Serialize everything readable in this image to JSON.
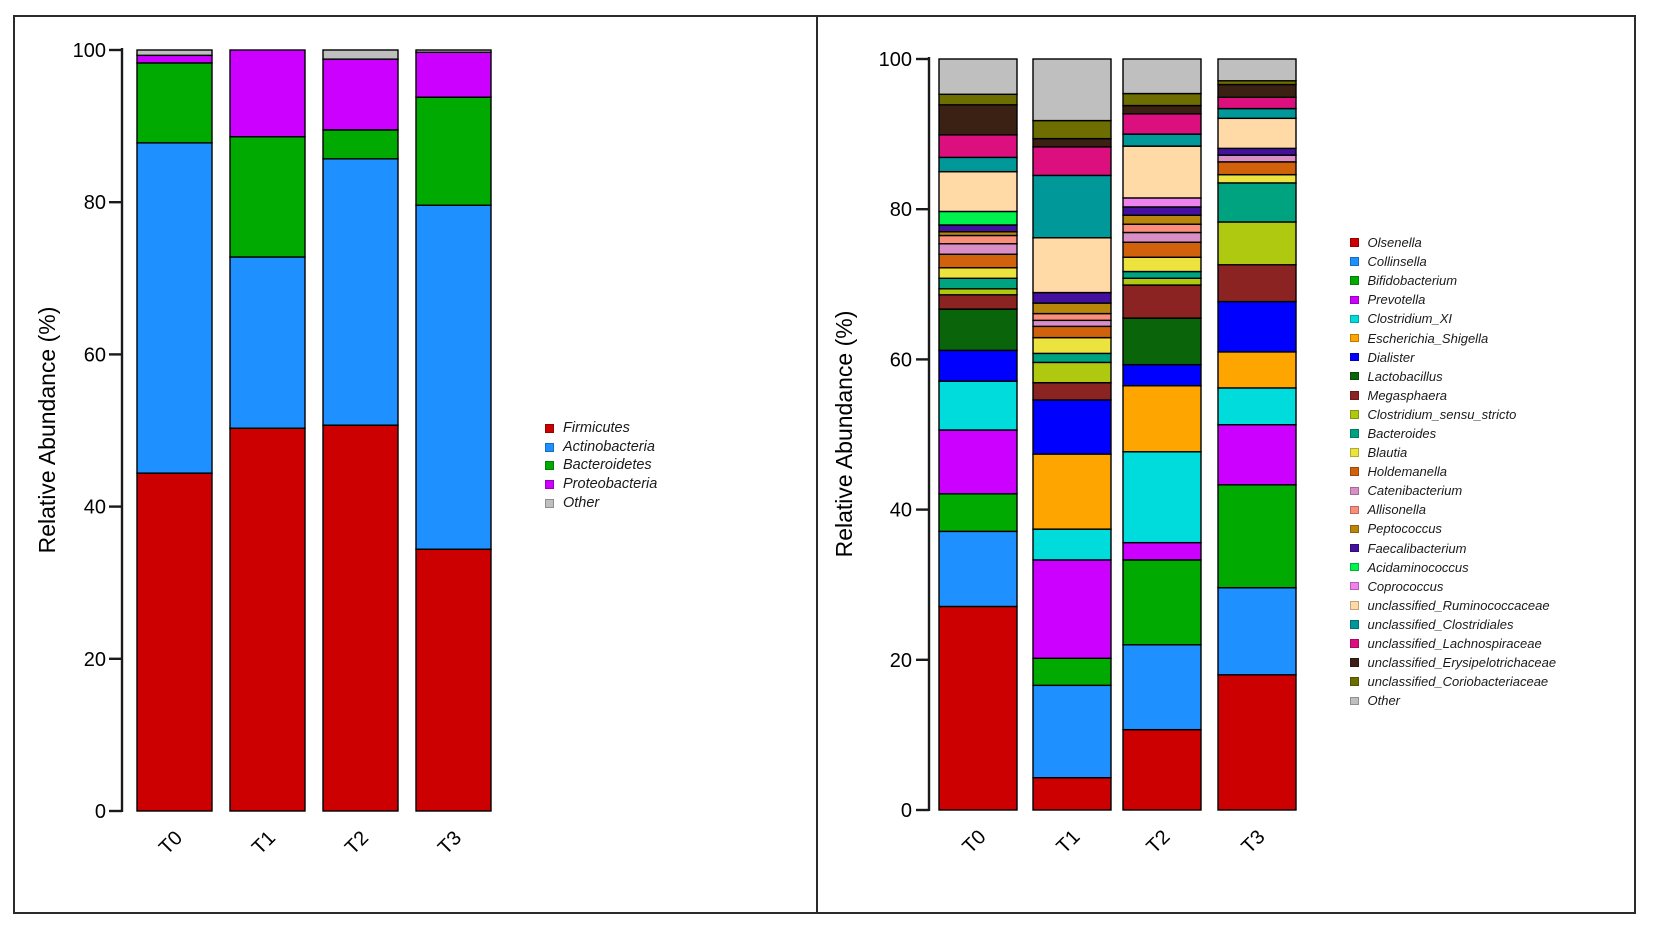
{
  "figure": {
    "background": "#ffffff",
    "frame_color": "#2b2b2b",
    "axis_color": "#1a1a1a",
    "bar_outline_color": "#000000"
  },
  "chart_data": [
    {
      "type": "bar",
      "stacked": true,
      "panel": "phylum-level",
      "title": "",
      "xlabel": "",
      "ylabel": "Relative Abundance (%)",
      "ylim": [
        0,
        100
      ],
      "yticks": [
        0,
        20,
        40,
        60,
        80,
        100
      ],
      "grid": false,
      "legend_position": "right",
      "categories": [
        "T0",
        "T1",
        "T2",
        "T3"
      ],
      "series": [
        {
          "name": "Firmicutes",
          "color": "#CC0000",
          "values": [
            44.4,
            50.3,
            50.7,
            34.4
          ]
        },
        {
          "name": "Actinobacteria",
          "color": "#1E90FF",
          "values": [
            43.4,
            22.5,
            35.0,
            45.2
          ]
        },
        {
          "name": "Bacteroidetes",
          "color": "#00AA00",
          "values": [
            10.5,
            15.8,
            3.8,
            14.2
          ]
        },
        {
          "name": "Proteobacteria",
          "color": "#CC00FF",
          "values": [
            1.0,
            11.4,
            9.3,
            5.9
          ]
        },
        {
          "name": "Other",
          "color": "#BFBFBF",
          "values": [
            0.7,
            0.0,
            1.2,
            0.3
          ]
        }
      ]
    },
    {
      "type": "bar",
      "stacked": true,
      "panel": "genus-level",
      "title": "",
      "xlabel": "",
      "ylabel": "Relative Abundance (%)",
      "ylim": [
        0,
        100
      ],
      "yticks": [
        0,
        20,
        40,
        60,
        80,
        100
      ],
      "grid": false,
      "legend_position": "right",
      "categories": [
        "T0",
        "T1",
        "T2",
        "T3"
      ],
      "series": [
        {
          "name": "Olsenella",
          "color": "#CC0000",
          "values": [
            27.1,
            4.3,
            10.7,
            18.0
          ]
        },
        {
          "name": "Collinsella",
          "color": "#1E90FF",
          "values": [
            10.0,
            12.3,
            11.3,
            11.6
          ]
        },
        {
          "name": "Bifidobacterium",
          "color": "#00AA00",
          "values": [
            5.0,
            3.6,
            11.3,
            13.7
          ]
        },
        {
          "name": "Prevotella",
          "color": "#CC00FF",
          "values": [
            8.5,
            13.1,
            2.3,
            8.0
          ]
        },
        {
          "name": "Clostridium_XI",
          "color": "#00DCDC",
          "values": [
            6.5,
            4.1,
            12.1,
            4.9
          ]
        },
        {
          "name": "Escherichia_Shigella",
          "color": "#FFA500",
          "values": [
            0.0,
            10.0,
            8.8,
            4.8
          ]
        },
        {
          "name": "Dialister",
          "color": "#0000FF",
          "values": [
            4.1,
            7.2,
            2.8,
            6.7
          ]
        },
        {
          "name": "Lactobacillus",
          "color": "#0A640A",
          "values": [
            5.5,
            0.0,
            6.2,
            0.0
          ]
        },
        {
          "name": "Megasphaera",
          "color": "#8B2323",
          "values": [
            1.9,
            2.3,
            4.4,
            4.9
          ]
        },
        {
          "name": "Clostridium_sensu_stricto",
          "color": "#AFC810",
          "values": [
            0.8,
            2.7,
            0.9,
            5.7
          ]
        },
        {
          "name": "Bacteroides",
          "color": "#00A380",
          "values": [
            1.4,
            1.2,
            0.9,
            5.2
          ]
        },
        {
          "name": "Blautia",
          "color": "#EDE33F",
          "values": [
            1.4,
            2.1,
            1.9,
            1.1
          ]
        },
        {
          "name": "Holdemanella",
          "color": "#D2610C",
          "values": [
            1.8,
            1.5,
            2.0,
            1.7
          ]
        },
        {
          "name": "Catenibacterium",
          "color": "#D98FC6",
          "values": [
            1.4,
            0.8,
            1.3,
            0.9
          ]
        },
        {
          "name": "Allisonella",
          "color": "#FA8E7A",
          "values": [
            1.1,
            0.9,
            1.1,
            0.0
          ]
        },
        {
          "name": "Peptococcus",
          "color": "#B8860B",
          "values": [
            0.5,
            1.4,
            1.2,
            0.0
          ]
        },
        {
          "name": "Faecalibacterium",
          "color": "#44109E",
          "values": [
            0.9,
            1.4,
            1.1,
            0.9
          ]
        },
        {
          "name": "Acidaminococcus",
          "color": "#00F24C",
          "values": [
            1.8,
            0.0,
            0.0,
            0.0
          ]
        },
        {
          "name": "Coprococcus",
          "color": "#EE82EE",
          "values": [
            0.0,
            0.0,
            1.2,
            0.0
          ]
        },
        {
          "name": "unclassified_Ruminococcaceae",
          "color": "#FFD9A6",
          "values": [
            5.3,
            7.3,
            6.9,
            4.0
          ]
        },
        {
          "name": "unclassified_Clostridiales",
          "color": "#009898",
          "values": [
            1.9,
            8.3,
            1.6,
            1.3
          ]
        },
        {
          "name": "unclassified_Lachnospiraceae",
          "color": "#DC0F7E",
          "values": [
            3.0,
            3.8,
            2.7,
            1.5
          ]
        },
        {
          "name": "unclassified_Erysipelotrichaceae",
          "color": "#3A2113",
          "values": [
            4.0,
            1.1,
            1.1,
            1.7
          ]
        },
        {
          "name": "unclassified_Coriobacteriaceae",
          "color": "#6E6E00",
          "values": [
            1.4,
            2.4,
            1.6,
            0.5
          ]
        },
        {
          "name": "Other",
          "color": "#BFBFBF",
          "values": [
            4.7,
            8.2,
            4.6,
            2.9
          ]
        }
      ]
    }
  ]
}
